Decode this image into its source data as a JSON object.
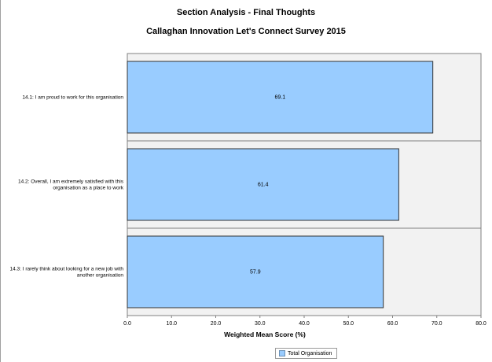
{
  "title": "Section Analysis  -  Final Thoughts",
  "subtitle": "Callaghan Innovation Let's  Connect  Survey 2015",
  "colors": {
    "bar_fill": "#99ccff",
    "bar_stroke": "#333333",
    "plot_bg": "#f2f2f2",
    "grid": "#808080"
  },
  "chart_data": {
    "type": "bar",
    "orientation": "horizontal",
    "categories": [
      "14.1: I am proud to work for this organisation",
      "14.2: Overall, I am extremely satisfied with this organisation as a place to work",
      "14.3: I rarely think about looking for a new job with another organisation"
    ],
    "category_lines": [
      [
        "14.1: I am proud to work for this organisation"
      ],
      [
        "14.2: Overall, I am extremely satisfied with this",
        "organisation as a place to work"
      ],
      [
        "14.3: I rarely think about looking for a new job with",
        "another organisation"
      ]
    ],
    "series": [
      {
        "name": "Total Organisation",
        "values": [
          69.1,
          61.4,
          57.9
        ]
      }
    ],
    "data_labels": [
      "69.1",
      "61.4",
      "57.9"
    ],
    "xlabel": "Weighted Mean Score (%)",
    "ylabel": "",
    "xlim": [
      0,
      80
    ],
    "xticks": [
      "0.0",
      "10.0",
      "20.0",
      "30.0",
      "40.0",
      "50.0",
      "60.0",
      "70.0",
      "80.0"
    ],
    "grid": false,
    "legend_position": "bottom"
  }
}
